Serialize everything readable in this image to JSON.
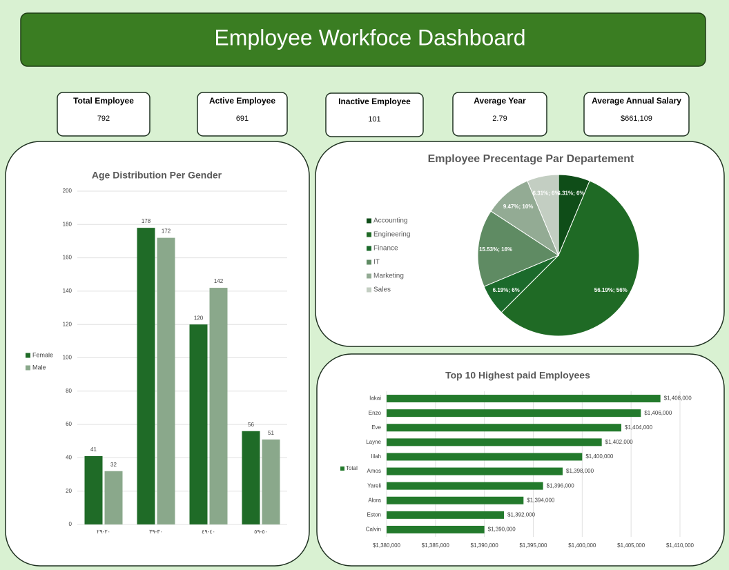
{
  "title": "Employee Workfoce Dashboard",
  "kpis": [
    {
      "label": "Total Employee",
      "value": 792
    },
    {
      "label": "Active Employee",
      "value": 691
    },
    {
      "label": "Inactive Employee",
      "value": 101
    },
    {
      "label": "Average Year",
      "value": 2.79
    },
    {
      "label": "Average Annual Salary",
      "value": "$661,109"
    }
  ],
  "chart_data": [
    {
      "type": "bar",
      "title": "Age Distribution Per Gender",
      "categories": [
        "٢٠-٢٩",
        "٣٠-٣٩",
        "٤٠-٤٩",
        "٥٠-٥٩"
      ],
      "series": [
        {
          "name": "Female",
          "color": "#1f6b27",
          "values": [
            41,
            178,
            120,
            56
          ]
        },
        {
          "name": "Male",
          "color": "#8aa88b",
          "values": [
            32,
            172,
            142,
            51
          ]
        }
      ],
      "ylim": [
        0,
        200
      ],
      "yticks": [
        0,
        20,
        40,
        60,
        80,
        100,
        120,
        140,
        160,
        180,
        200
      ],
      "grid": true,
      "legend": "left"
    },
    {
      "type": "pie",
      "title": "Employee Precentage Par Departement",
      "categories": [
        "Accounting",
        "Engineering",
        "Finance",
        "IT",
        "Marketing",
        "Sales"
      ],
      "values": [
        6.31,
        56.19,
        6.19,
        15.53,
        9.47,
        6.31
      ],
      "value_labels": [
        "6.31%; 6%",
        "56.19%; 56%",
        "6.19%; 6%",
        "15.53%; 16%",
        "9.47%; 10%",
        "6.31%; 6%"
      ],
      "colors": [
        "#0f4d18",
        "#1f6a25",
        "#1b6a2b",
        "#5f8b63",
        "#93ab94",
        "#c3cec2"
      ],
      "legend": "left"
    },
    {
      "type": "hbar",
      "title": "Top 10 Highest paid Employees",
      "categories": [
        "Iakai",
        "Enzo",
        "Eve",
        "Layne",
        "Iilah",
        "Amos",
        "Yareli",
        "Alora",
        "Eston",
        "Calvin"
      ],
      "series": [
        {
          "name": "Total",
          "color": "#237a2c",
          "values": [
            1408000,
            1406000,
            1404000,
            1402000,
            1400000,
            1398000,
            1396000,
            1394000,
            1392000,
            1390000
          ],
          "value_labels": [
            "$1,408,000",
            "$1,406,000",
            "$1,404,000",
            "$1,402,000",
            "$1,400,000",
            "$1,398,000",
            "$1,396,000",
            "$1,394,000",
            "$1,392,000",
            "$1,390,000"
          ]
        }
      ],
      "xlim": [
        1380000,
        1410000
      ],
      "xticks": [
        {
          "value": 1380000,
          "label": "$1,380,000"
        },
        {
          "value": 1385000,
          "label": "$1,385,000"
        },
        {
          "value": 1390000,
          "label": "$1,390,000"
        },
        {
          "value": 1395000,
          "label": "$1,395,000"
        },
        {
          "value": 1400000,
          "label": "$1,400,000"
        },
        {
          "value": 1405000,
          "label": "$1,405,000"
        },
        {
          "value": 1410000,
          "label": "$1,410,000"
        }
      ],
      "grid": true,
      "legend": "left"
    }
  ]
}
